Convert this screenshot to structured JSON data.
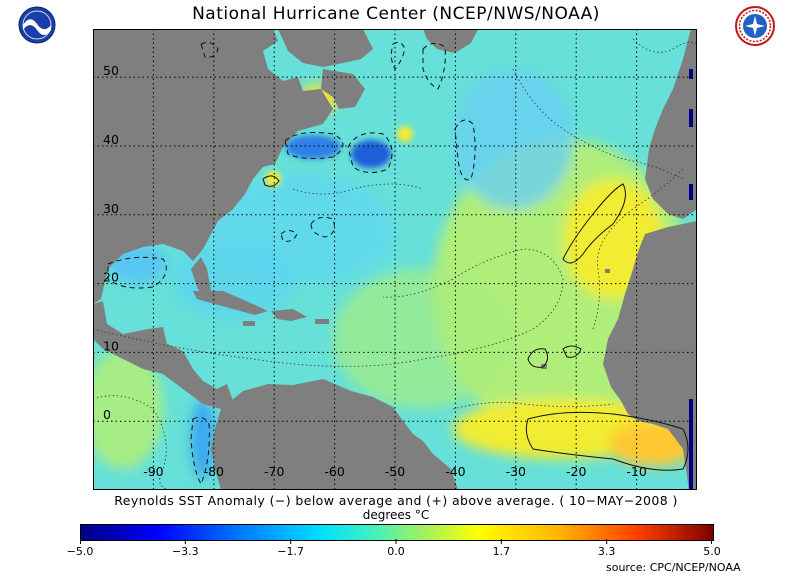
{
  "header": {
    "title": "National Hurricane Center (NCEP/NWS/NOAA)",
    "left_logo": "noaa-logo",
    "right_logo": "nws-logo"
  },
  "map": {
    "type": "sst-anomaly-map",
    "region": "North Atlantic",
    "lon_range": [
      -100,
      0
    ],
    "lat_range": [
      -10,
      57
    ],
    "lon_ticks": [
      "-90",
      "-80",
      "-70",
      "-60",
      "-50",
      "-40",
      "-30",
      "-20",
      "-10"
    ],
    "lat_ticks": [
      "0",
      "10",
      "20",
      "30",
      "40",
      "50"
    ],
    "grid": "dotted",
    "land_color": "#7f7f7f",
    "ocean_base_color": "#66e0d8",
    "warm_anomaly_color": "#f5e61e",
    "cool_anomaly_color": "#2a7de8"
  },
  "caption": {
    "text": "Reynolds SST Anomaly (−) below average and (+) above average. ( 10−MAY−2008 )",
    "units": "degrees °C"
  },
  "colorbar": {
    "labels": [
      "−5.0",
      "−3.3",
      "−1.7",
      "0.0",
      "1.7",
      "3.3",
      "5.0"
    ],
    "min": -5.0,
    "max": 5.0
  },
  "source": "source:  CPC/NCEP/NOAA"
}
